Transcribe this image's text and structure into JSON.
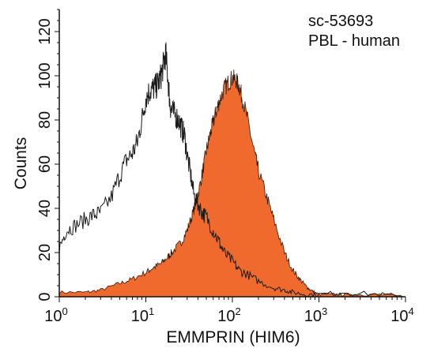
{
  "chart_data": {
    "type": "area",
    "title": "",
    "annotations": [
      "sc-53693",
      "PBL - human"
    ],
    "xlabel": "EMMPRIN (HIM6)",
    "ylabel": "Counts",
    "x_scale": "log",
    "xlim": [
      1,
      10000
    ],
    "ylim": [
      0,
      130
    ],
    "x_ticks": [
      {
        "base": "10",
        "exp": "0"
      },
      {
        "base": "10",
        "exp": "1"
      },
      {
        "base": "10",
        "exp": "2"
      },
      {
        "base": "10",
        "exp": "3"
      },
      {
        "base": "10",
        "exp": "4"
      }
    ],
    "y_ticks": [
      "0",
      "20",
      "40",
      "60",
      "80",
      "100",
      "120"
    ],
    "grid": false,
    "series": [
      {
        "style": "outline",
        "color": "#1a1a1a",
        "x": [
          1,
          1.2,
          1.5,
          2,
          2.5,
          3,
          4,
          5,
          6,
          7,
          8,
          9,
          10,
          11,
          12,
          13,
          14,
          15,
          16,
          17,
          18,
          19,
          20,
          22,
          24,
          26,
          28,
          30,
          33,
          36,
          40,
          45,
          50,
          60,
          70,
          80,
          100,
          120,
          150,
          200,
          300,
          400,
          500,
          700,
          1000,
          2000,
          5000,
          10000
        ],
        "values": [
          22,
          30,
          32,
          35,
          37,
          38,
          45,
          55,
          62,
          65,
          70,
          80,
          90,
          93,
          94,
          95,
          97,
          100,
          105,
          110,
          99,
          87,
          84,
          82,
          80,
          76,
          73,
          64,
          55,
          46,
          42,
          38,
          36,
          30,
          25,
          20,
          16,
          12,
          10,
          7,
          4,
          3,
          2,
          1,
          1,
          2,
          1,
          0
        ]
      },
      {
        "style": "filled",
        "color": "#ef6a2c",
        "x": [
          1,
          2,
          3,
          5,
          7,
          10,
          12,
          15,
          18,
          20,
          25,
          30,
          35,
          40,
          45,
          50,
          55,
          60,
          65,
          70,
          80,
          90,
          100,
          110,
          120,
          130,
          150,
          180,
          200,
          250,
          300,
          400,
          500,
          600,
          700,
          800,
          1000,
          1500,
          2000,
          3000,
          5000,
          10000
        ],
        "values": [
          2,
          2,
          3,
          6,
          8,
          11,
          13,
          15,
          18,
          20,
          24,
          30,
          38,
          46,
          56,
          66,
          73,
          79,
          84,
          88,
          94,
          97,
          99,
          98,
          95,
          90,
          80,
          65,
          57,
          45,
          35,
          20,
          12,
          8,
          5,
          3,
          1,
          1,
          1,
          1,
          1,
          0
        ]
      }
    ]
  }
}
